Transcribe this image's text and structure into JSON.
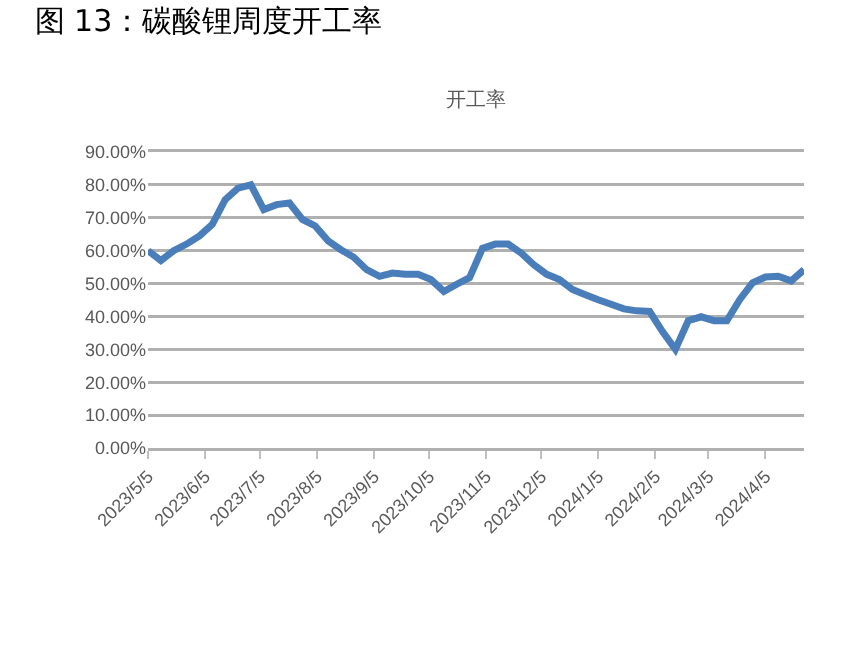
{
  "chart_data": {
    "type": "line",
    "title": "图 13：碳酸锂周度开工率",
    "subtitle": "开工率",
    "x": [
      "2023-05-05",
      "2023-05-12",
      "2023-05-19",
      "2023-05-26",
      "2023-06-02",
      "2023-06-09",
      "2023-06-16",
      "2023-06-23",
      "2023-06-30",
      "2023-07-07",
      "2023-07-14",
      "2023-07-21",
      "2023-07-28",
      "2023-08-04",
      "2023-08-11",
      "2023-08-18",
      "2023-08-25",
      "2023-09-01",
      "2023-09-08",
      "2023-09-15",
      "2023-09-22",
      "2023-09-29",
      "2023-10-06",
      "2023-10-13",
      "2023-10-20",
      "2023-10-27",
      "2023-11-03",
      "2023-11-10",
      "2023-11-17",
      "2023-11-24",
      "2023-12-01",
      "2023-12-08",
      "2023-12-15",
      "2023-12-22",
      "2023-12-29",
      "2024-01-05",
      "2024-01-12",
      "2024-01-19",
      "2024-01-26",
      "2024-02-02",
      "2024-02-09",
      "2024-02-16",
      "2024-02-23",
      "2024-03-01",
      "2024-03-08",
      "2024-03-15",
      "2024-03-22",
      "2024-03-29",
      "2024-04-05",
      "2024-04-12",
      "2024-04-19",
      "2024-04-26"
    ],
    "series": [
      {
        "color": "#4a7ebb",
        "values": [
          60,
          57,
          60,
          62,
          64.5,
          68,
          75.5,
          79,
          80,
          72.5,
          74,
          74.5,
          69.5,
          67.5,
          63,
          60.3,
          58,
          54.2,
          52.2,
          53.2,
          52.8,
          52.8,
          51.2,
          47.6,
          49.8,
          51.8,
          60.7,
          62,
          62,
          59.3,
          55.7,
          52.8,
          51.2,
          48.2,
          46.6,
          45.1,
          43.7,
          42.3,
          41.7,
          41.5,
          35.4,
          30,
          38.7,
          39.9,
          38.7,
          38.7,
          45.1,
          50.2,
          52,
          52.2,
          50.8,
          54.2
        ]
      }
    ],
    "xlim": [
      "2023-05-05",
      "2024-04-26"
    ],
    "xticks": [
      {
        "value": "2023-05-05",
        "label": "2023/5/5"
      },
      {
        "value": "2023-06-05",
        "label": "2023/6/5"
      },
      {
        "value": "2023-07-05",
        "label": "2023/7/5"
      },
      {
        "value": "2023-08-05",
        "label": "2023/8/5"
      },
      {
        "value": "2023-09-05",
        "label": "2023/9/5"
      },
      {
        "value": "2023-10-05",
        "label": "2023/10/5"
      },
      {
        "value": "2023-11-05",
        "label": "2023/11/5"
      },
      {
        "value": "2023-12-05",
        "label": "2023/12/5"
      },
      {
        "value": "2024-01-05",
        "label": "2024/1/5"
      },
      {
        "value": "2024-02-05",
        "label": "2024/2/5"
      },
      {
        "value": "2024-03-05",
        "label": "2024/3/5"
      },
      {
        "value": "2024-04-05",
        "label": "2024/4/5"
      }
    ],
    "ylim": [
      0,
      90
    ],
    "yticks": [
      {
        "value": 0,
        "label": "0.00%"
      },
      {
        "value": 10,
        "label": "10.00%"
      },
      {
        "value": 20,
        "label": "20.00%"
      },
      {
        "value": 30,
        "label": "30.00%"
      },
      {
        "value": 40,
        "label": "40.00%"
      },
      {
        "value": 50,
        "label": "50.00%"
      },
      {
        "value": 60,
        "label": "60.00%"
      },
      {
        "value": 70,
        "label": "70.00%"
      },
      {
        "value": 80,
        "label": "80.00%"
      },
      {
        "value": 90,
        "label": "90.00%"
      }
    ],
    "grid": "y",
    "marker": "none",
    "line_style": "solid"
  }
}
